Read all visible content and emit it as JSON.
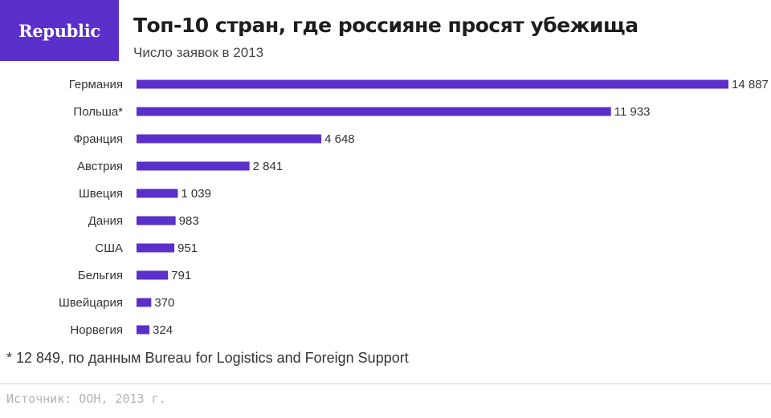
{
  "brand": {
    "logo_text": "Republic",
    "accent_color": "#5b2fc9"
  },
  "header": {
    "title": "Топ-10 стран, где россияне просят убежища",
    "subtitle": "Число заявок в 2013"
  },
  "chart_data": {
    "type": "bar",
    "orientation": "horizontal",
    "categories": [
      "Германия",
      "Польша*",
      "Франция",
      "Австрия",
      "Швеция",
      "Дания",
      "США",
      "Бельгия",
      "Швейцария",
      "Норвегия"
    ],
    "values": [
      14887,
      11933,
      4648,
      2841,
      1039,
      983,
      951,
      791,
      370,
      324
    ],
    "value_labels": [
      "14 887",
      "11 933",
      "4 648",
      "2 841",
      "1 039",
      "983",
      "951",
      "791",
      "370",
      "324"
    ],
    "title": "Топ-10 стран, где россияне просят убежища",
    "subtitle": "Число заявок в 2013",
    "xlim": [
      0,
      14887
    ],
    "bar_color": "#5b2fc9",
    "grid": false,
    "legend": "none"
  },
  "footnote": "* 12 849, по данным Bureau for Logistics and Foreign Support",
  "source": "Источник: ООН, 2013 г."
}
